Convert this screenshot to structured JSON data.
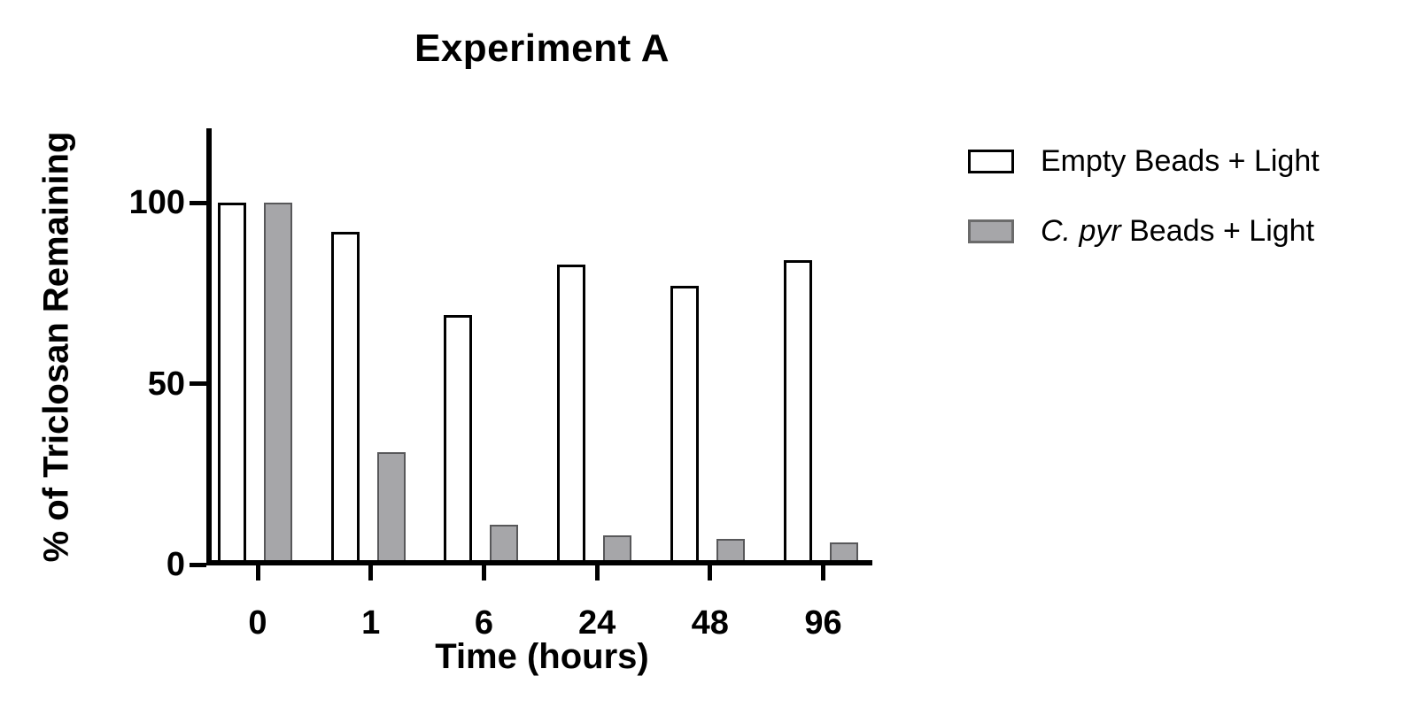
{
  "chart_data": {
    "type": "bar",
    "title": "Experiment A",
    "categories": [
      "0",
      "1",
      "6",
      "24",
      "48",
      "96"
    ],
    "series": [
      {
        "name": "Empty Beads + Light",
        "values": [
          100,
          92,
          69,
          83,
          77,
          84
        ],
        "fill": "#FFFFFF",
        "border": "#000000"
      },
      {
        "name": "C. pyr Beads + Light",
        "values": [
          100,
          31,
          11,
          8,
          7,
          6
        ],
        "fill": "#A6A6A9",
        "border": "#58585A"
      }
    ],
    "xlabel": "Time (hours)",
    "ylabel": "% of Triclosan Remaining",
    "yticks": [
      0,
      50,
      100
    ],
    "ylim": [
      0,
      120
    ],
    "grid": false,
    "legend_position": "right-of-plot-top"
  },
  "legend": {
    "items": [
      {
        "italic": "",
        "label": "Empty Beads + Light",
        "swatch_fill": "#FFFFFF",
        "swatch_border": "#000000"
      },
      {
        "italic": "C. pyr",
        "label": " Beads + Light",
        "swatch_fill": "#A6A6A9",
        "swatch_border": "#6B6B6B"
      }
    ]
  }
}
